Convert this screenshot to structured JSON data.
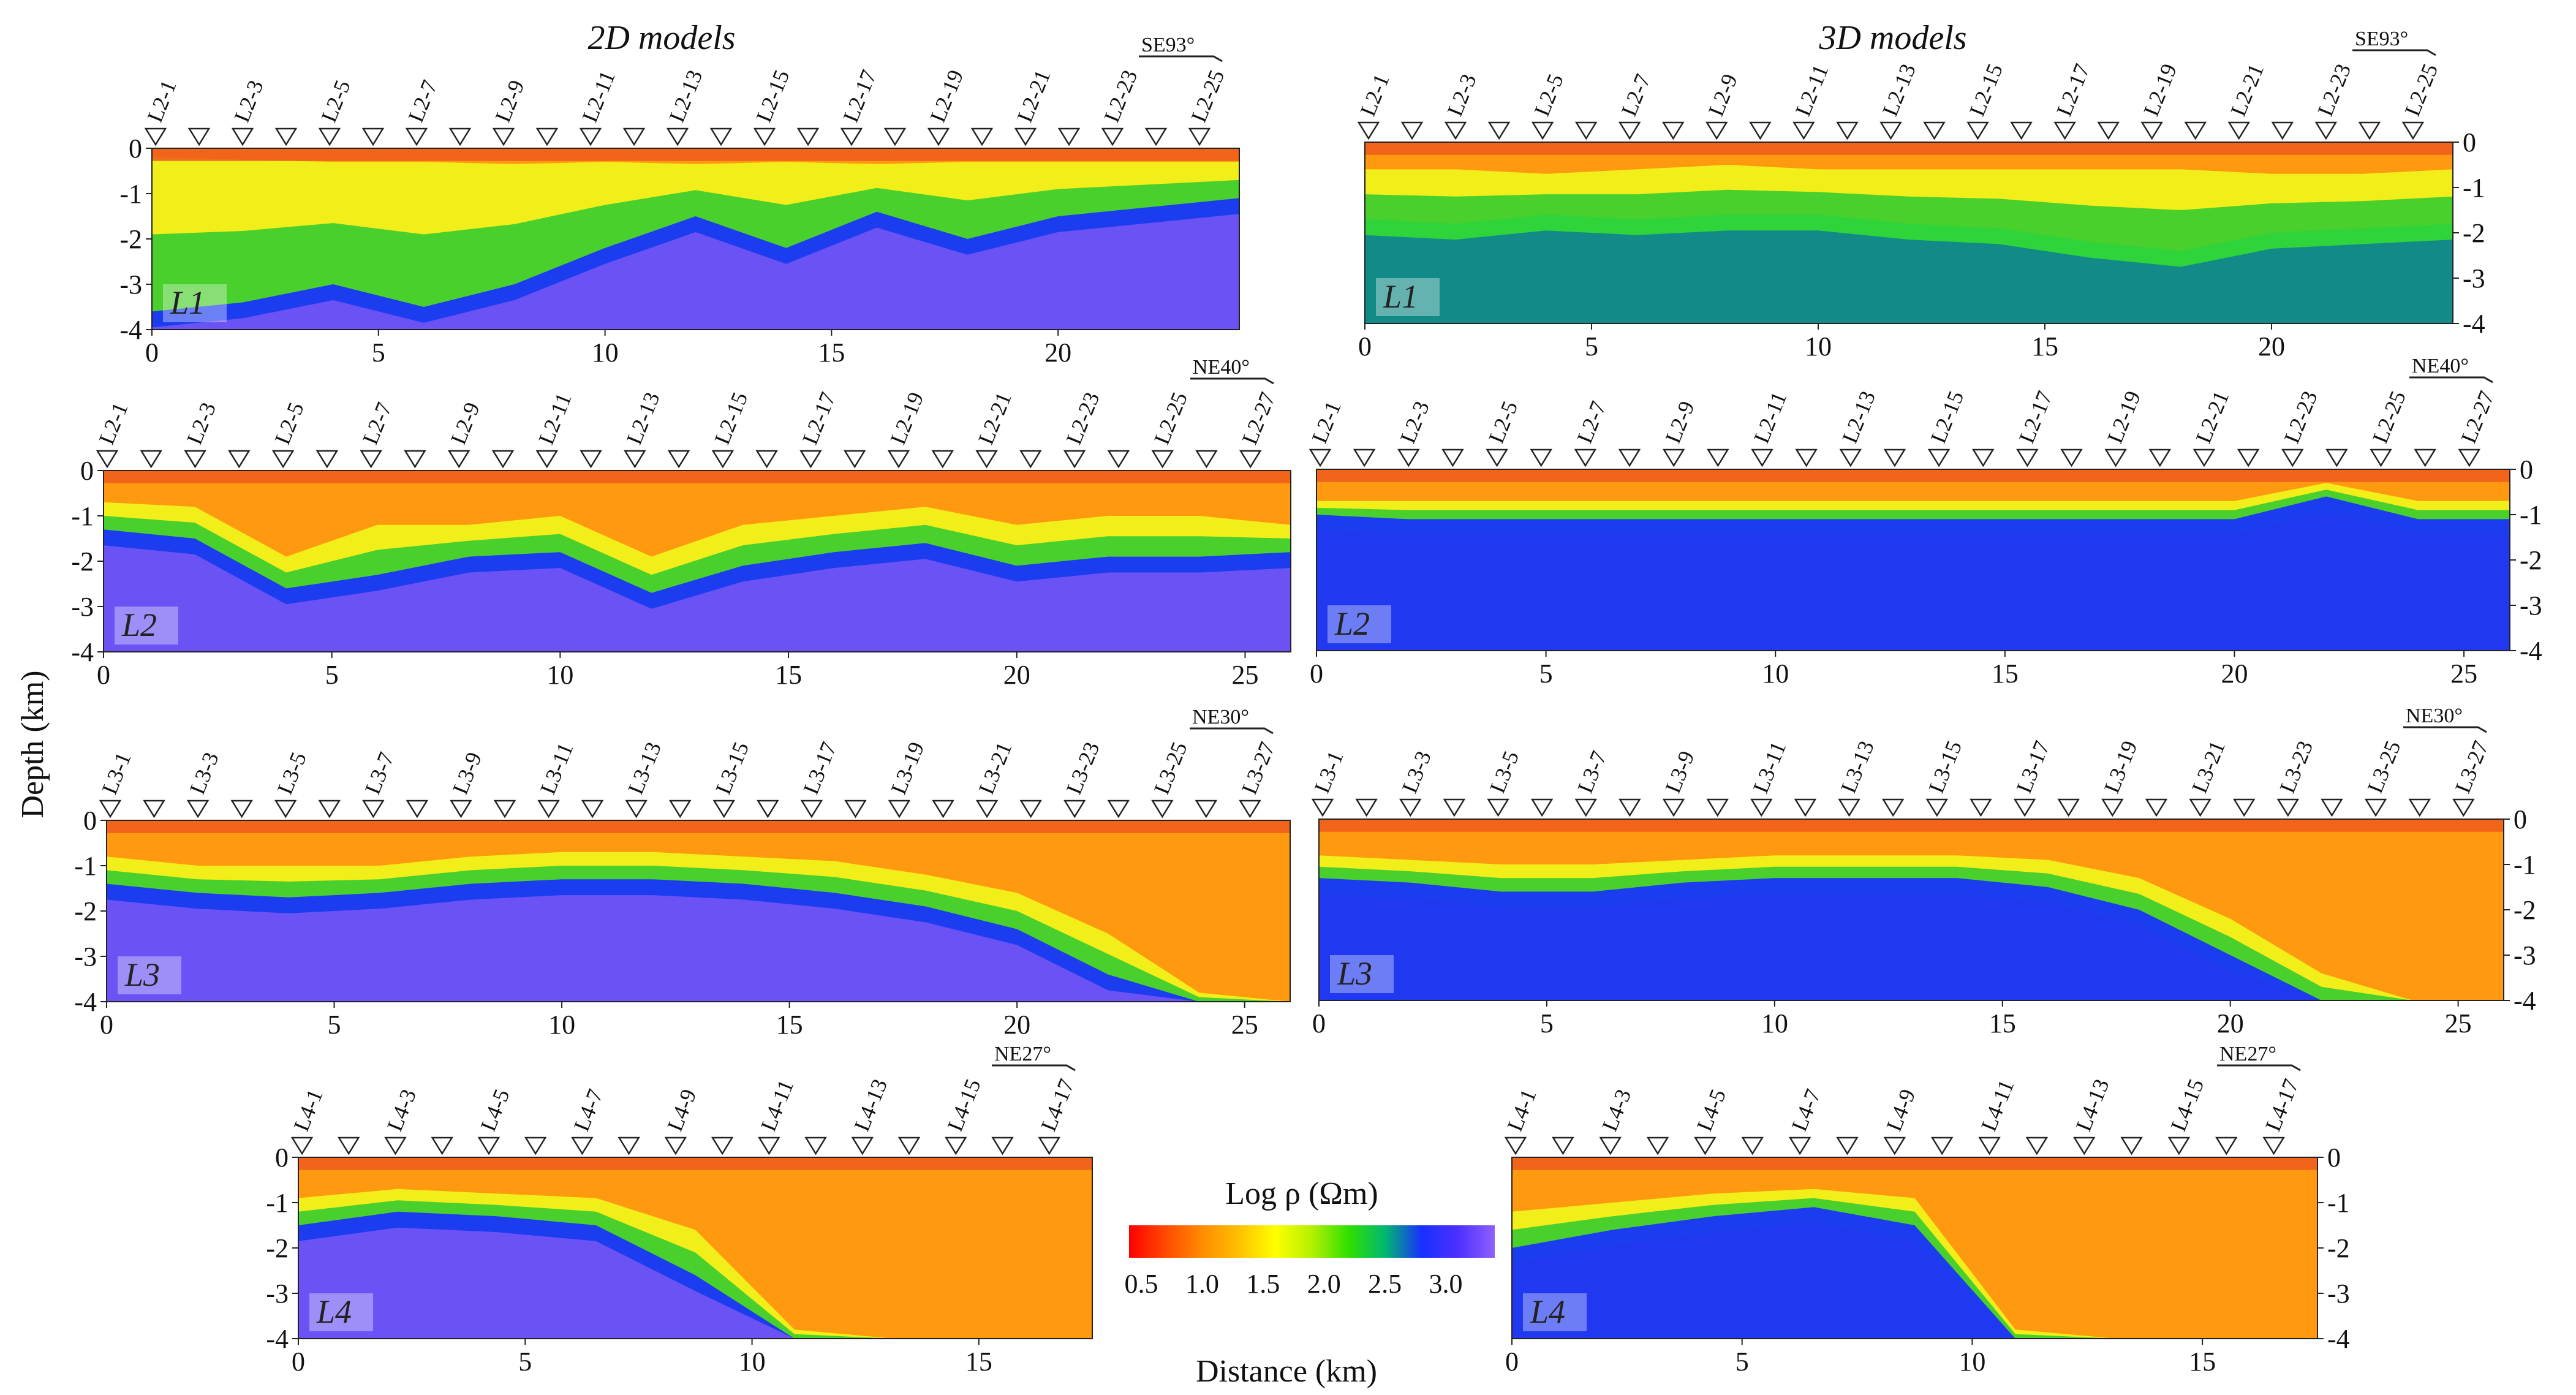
{
  "titles": {
    "left": "2D models",
    "right": "3D models"
  },
  "ylabel": "Depth (km)",
  "xlabel": "Distance (km)",
  "colorbar": {
    "label": "Log ρ (Ωm)",
    "ticks": [
      "0.5",
      "1.0",
      "1.5",
      "2.0",
      "2.5",
      "3.0"
    ],
    "colors": [
      "#ff0000",
      "#ff4a00",
      "#ff8c00",
      "#ffc000",
      "#ffff00",
      "#b4f000",
      "#30e000",
      "#00b870",
      "#1830ff",
      "#4c30ff",
      "#9060ff"
    ]
  },
  "colors": {
    "shallow_conductor": "#ee5a1c",
    "resistive_basement": "#6a52f4",
    "transition": "#49d02c",
    "deep_3d": "#128a88"
  },
  "panels": [
    {
      "id": "L1-2D",
      "label": "L1",
      "direction": "SE93°",
      "xmax": 24,
      "xticks": [
        0,
        5,
        10,
        15,
        20
      ],
      "yticks": [
        "0",
        "-1",
        "-2",
        "-3",
        "-4"
      ],
      "stations": [
        "L2-1",
        "L2-3",
        "L2-5",
        "L2-7",
        "L2-9",
        "L2-11",
        "L2-13",
        "L2-15",
        "L2-17",
        "L2-19",
        "L2-21",
        "L2-23",
        "L2-25"
      ],
      "top_km": [
        0.2,
        0.25,
        0.3,
        0.3,
        0.35,
        0.3,
        0.35,
        0.3,
        0.35,
        0.3,
        0.3,
        0.3,
        0.3
      ],
      "base_km": [
        3.6,
        3.4,
        3.0,
        3.5,
        3.0,
        2.2,
        1.5,
        2.2,
        1.4,
        2.0,
        1.5,
        1.3,
        1.1
      ]
    },
    {
      "id": "L1-3D",
      "label": "L1",
      "direction": "SE93°",
      "xmax": 24,
      "xticks": [
        0,
        5,
        10,
        15,
        20
      ],
      "yticks": [
        "0",
        "-1",
        "-2",
        "-3",
        "-4"
      ],
      "stations": [
        "L2-1",
        "L2-3",
        "L2-5",
        "L2-7",
        "L2-9",
        "L2-11",
        "L2-13",
        "L2-15",
        "L2-17",
        "L2-19",
        "L2-21",
        "L2-23",
        "L2-25"
      ],
      "top_km": [
        0.6,
        0.6,
        0.7,
        0.6,
        0.5,
        0.6,
        0.6,
        0.6,
        0.6,
        0.6,
        0.7,
        0.7,
        0.6
      ],
      "base_km": [
        1.7,
        1.8,
        1.6,
        1.7,
        1.6,
        1.6,
        1.8,
        1.9,
        2.2,
        2.4,
        2.0,
        1.9,
        1.8
      ]
    },
    {
      "id": "L2-2D",
      "label": "L2",
      "direction": "NE40°",
      "xmax": 26,
      "xticks": [
        0,
        5,
        10,
        15,
        20,
        25
      ],
      "yticks": [
        "0",
        "-1",
        "-2",
        "-3",
        "-4"
      ],
      "stations": [
        "L2-1",
        "L2-3",
        "L2-5",
        "L2-7",
        "L2-9",
        "L2-11",
        "L2-13",
        "L2-15",
        "L2-17",
        "L2-19",
        "L2-21",
        "L2-23",
        "L2-25",
        "L2-27"
      ],
      "top_km": [
        0.7,
        0.8,
        1.9,
        1.2,
        1.2,
        1.0,
        1.9,
        1.2,
        1.0,
        0.8,
        1.2,
        1.0,
        1.0,
        1.2
      ],
      "base_km": [
        1.3,
        1.5,
        2.6,
        2.3,
        1.9,
        1.8,
        2.7,
        2.1,
        1.8,
        1.6,
        2.1,
        1.9,
        1.9,
        1.8
      ]
    },
    {
      "id": "L2-3D",
      "label": "L2",
      "direction": "NE40°",
      "xmax": 26,
      "xticks": [
        0,
        5,
        10,
        15,
        20,
        25
      ],
      "yticks": [
        "0",
        "-1",
        "-2",
        "-3",
        "-4"
      ],
      "stations": [
        "L2-1",
        "L2-3",
        "L2-5",
        "L2-7",
        "L2-9",
        "L2-11",
        "L2-13",
        "L2-15",
        "L2-17",
        "L2-19",
        "L2-21",
        "L2-23",
        "L2-25",
        "L2-27"
      ],
      "top_km": [
        0.7,
        0.7,
        0.7,
        0.7,
        0.7,
        0.7,
        0.7,
        0.7,
        0.7,
        0.7,
        0.7,
        0.3,
        0.7,
        0.7
      ],
      "base_km": [
        1.0,
        1.1,
        1.1,
        1.1,
        1.1,
        1.1,
        1.1,
        1.1,
        1.1,
        1.1,
        1.1,
        0.6,
        1.1,
        1.1
      ]
    },
    {
      "id": "L3-2D",
      "label": "L3",
      "direction": "NE30°",
      "xmax": 26,
      "xticks": [
        0,
        5,
        10,
        15,
        20,
        25
      ],
      "yticks": [
        "0",
        "-1",
        "-2",
        "-3",
        "-4"
      ],
      "stations": [
        "L3-1",
        "L3-3",
        "L3-5",
        "L3-7",
        "L3-9",
        "L3-11",
        "L3-13",
        "L3-15",
        "L3-17",
        "L3-19",
        "L3-21",
        "L3-23",
        "L3-25",
        "L3-27"
      ],
      "top_km": [
        0.8,
        1.0,
        1.0,
        1.0,
        0.8,
        0.7,
        0.7,
        0.8,
        0.9,
        1.2,
        1.6,
        2.5,
        3.8,
        4.0
      ],
      "base_km": [
        1.4,
        1.6,
        1.7,
        1.6,
        1.4,
        1.3,
        1.3,
        1.4,
        1.6,
        1.9,
        2.4,
        3.4,
        4.0,
        4.0
      ]
    },
    {
      "id": "L3-3D",
      "label": "L3",
      "direction": "NE30°",
      "xmax": 26,
      "xticks": [
        0,
        5,
        10,
        15,
        20,
        25
      ],
      "yticks": [
        "0",
        "-1",
        "-2",
        "-3",
        "-4"
      ],
      "stations": [
        "L3-1",
        "L3-3",
        "L3-5",
        "L3-7",
        "L3-9",
        "L3-11",
        "L3-13",
        "L3-15",
        "L3-17",
        "L3-19",
        "L3-21",
        "L3-23",
        "L3-25",
        "L3-27"
      ],
      "top_km": [
        0.8,
        0.9,
        1.0,
        1.0,
        0.9,
        0.8,
        0.8,
        0.8,
        0.9,
        1.3,
        2.2,
        3.4,
        4.0,
        4.0
      ],
      "base_km": [
        1.3,
        1.4,
        1.6,
        1.6,
        1.4,
        1.3,
        1.3,
        1.3,
        1.5,
        2.0,
        3.0,
        4.0,
        4.0,
        4.0
      ]
    },
    {
      "id": "L4-2D",
      "label": "L4",
      "direction": "NE27°",
      "xmax": 17.5,
      "xticks": [
        0,
        5,
        10,
        15
      ],
      "yticks": [
        "0",
        "-1",
        "-2",
        "-3",
        "-4"
      ],
      "stations": [
        "L4-1",
        "L4-3",
        "L4-5",
        "L4-7",
        "L4-9",
        "L4-11",
        "L4-13",
        "L4-15",
        "L4-17"
      ],
      "top_km": [
        0.9,
        0.7,
        0.8,
        0.9,
        1.6,
        3.8,
        4.0,
        4.0,
        4.0
      ],
      "base_km": [
        1.5,
        1.2,
        1.3,
        1.5,
        2.6,
        4.0,
        4.0,
        4.0,
        4.0
      ]
    },
    {
      "id": "L4-3D",
      "label": "L4",
      "direction": "NE27°",
      "xmax": 17.5,
      "xticks": [
        0,
        5,
        10,
        15
      ],
      "yticks": [
        "0",
        "-1",
        "-2",
        "-3",
        "-4"
      ],
      "stations": [
        "L4-1",
        "L4-3",
        "L4-5",
        "L4-7",
        "L4-9",
        "L4-11",
        "L4-13",
        "L4-15",
        "L4-17"
      ],
      "top_km": [
        1.2,
        1.0,
        0.8,
        0.7,
        0.9,
        3.8,
        4.0,
        4.0,
        4.0
      ],
      "base_km": [
        2.0,
        1.6,
        1.3,
        1.1,
        1.5,
        4.0,
        4.0,
        4.0,
        4.0
      ]
    }
  ]
}
